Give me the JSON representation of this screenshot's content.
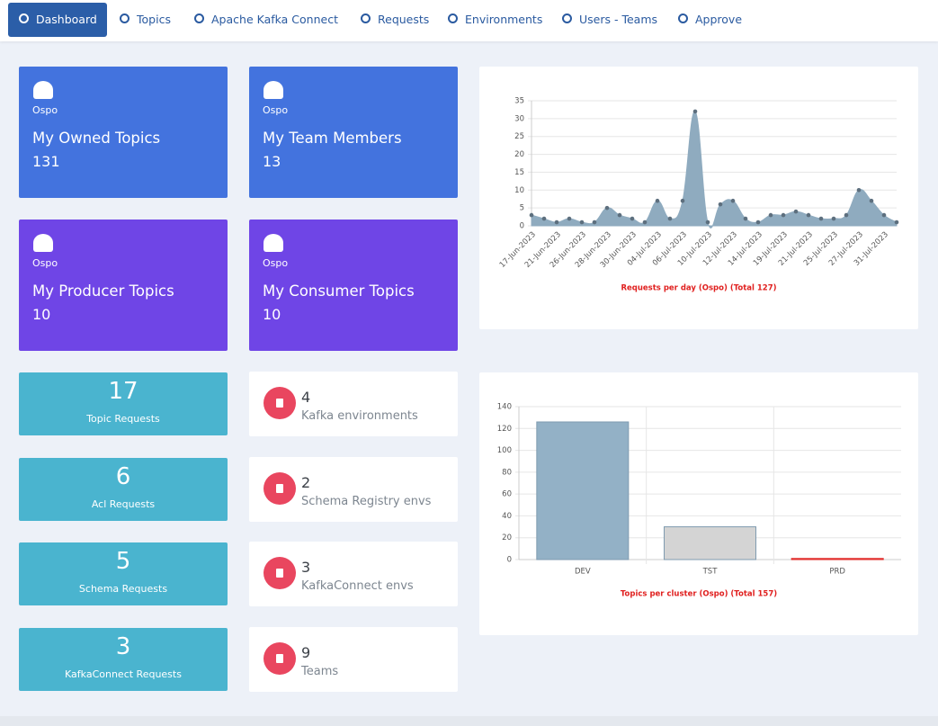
{
  "nav": [
    "Dashboard",
    "Topics",
    "Apache Kafka Connect",
    "Requests",
    "Environments",
    "Users - Teams",
    "Approve"
  ],
  "cards": [
    {
      "env": "Ospo",
      "title": "My Owned Topics",
      "value": 131,
      "color": "#4373de"
    },
    {
      "env": "Ospo",
      "title": "My Team Members",
      "value": 13,
      "color": "#4373de"
    },
    {
      "env": "Ospo",
      "title": "My Producer Topics",
      "value": 10,
      "color": "#6f45e6"
    },
    {
      "env": "Ospo",
      "title": "My Consumer Topics",
      "value": 10,
      "color": "#6f45e6"
    }
  ],
  "request_cards": [
    {
      "value": 17,
      "label": "Topic Requests"
    },
    {
      "value": 6,
      "label": "Acl Requests"
    },
    {
      "value": 5,
      "label": "Schema Requests"
    },
    {
      "value": 3,
      "label": "KafkaConnect Requests"
    }
  ],
  "env_cards": [
    {
      "value": 4,
      "label": "Kafka environments"
    },
    {
      "value": 2,
      "label": "Schema Registry envs"
    },
    {
      "value": 3,
      "label": "KafkaConnect envs"
    },
    {
      "value": 9,
      "label": "Teams"
    }
  ],
  "chart_data": [
    {
      "type": "area",
      "title": "Requests per day (Ospo) (Total 127)",
      "categories": [
        "17-Jun-2023",
        null,
        "21-Jun-2023",
        null,
        "26-Jun-2023",
        null,
        "28-Jun-2023",
        null,
        "30-Jun-2023",
        null,
        "04-Jul-2023",
        null,
        "06-Jul-2023",
        null,
        "10-Jul-2023",
        null,
        "12-Jul-2023",
        null,
        "14-Jul-2023",
        null,
        "19-Jul-2023",
        null,
        "21-Jul-2023",
        null,
        "25-Jul-2023",
        null,
        "27-Jul-2023",
        null,
        "31-Jul-2023",
        null
      ],
      "values": [
        3,
        2,
        1,
        2,
        1,
        1,
        5,
        3,
        2,
        1,
        7,
        2,
        7,
        32,
        1,
        6,
        7,
        2,
        1,
        3,
        3,
        4,
        3,
        2,
        2,
        3,
        10,
        7,
        3,
        1
      ],
      "color": "#8fabbf",
      "marker_color": "#5d6f7e",
      "ylim": [
        0,
        35
      ],
      "yticks": [
        0,
        5,
        10,
        15,
        20,
        25,
        30,
        35
      ],
      "grid": true
    },
    {
      "type": "bar",
      "title": "Topics per cluster (Ospo) (Total 157)",
      "categories": [
        "DEV",
        "TST",
        "PRD"
      ],
      "values": [
        126,
        30,
        1
      ],
      "colors": [
        "#93b1c6",
        "#d4d4d4",
        "#e57373"
      ],
      "ylim": [
        0,
        140
      ],
      "yticks": [
        0,
        20,
        40,
        60,
        80,
        100,
        120,
        140
      ],
      "grid": true
    }
  ]
}
